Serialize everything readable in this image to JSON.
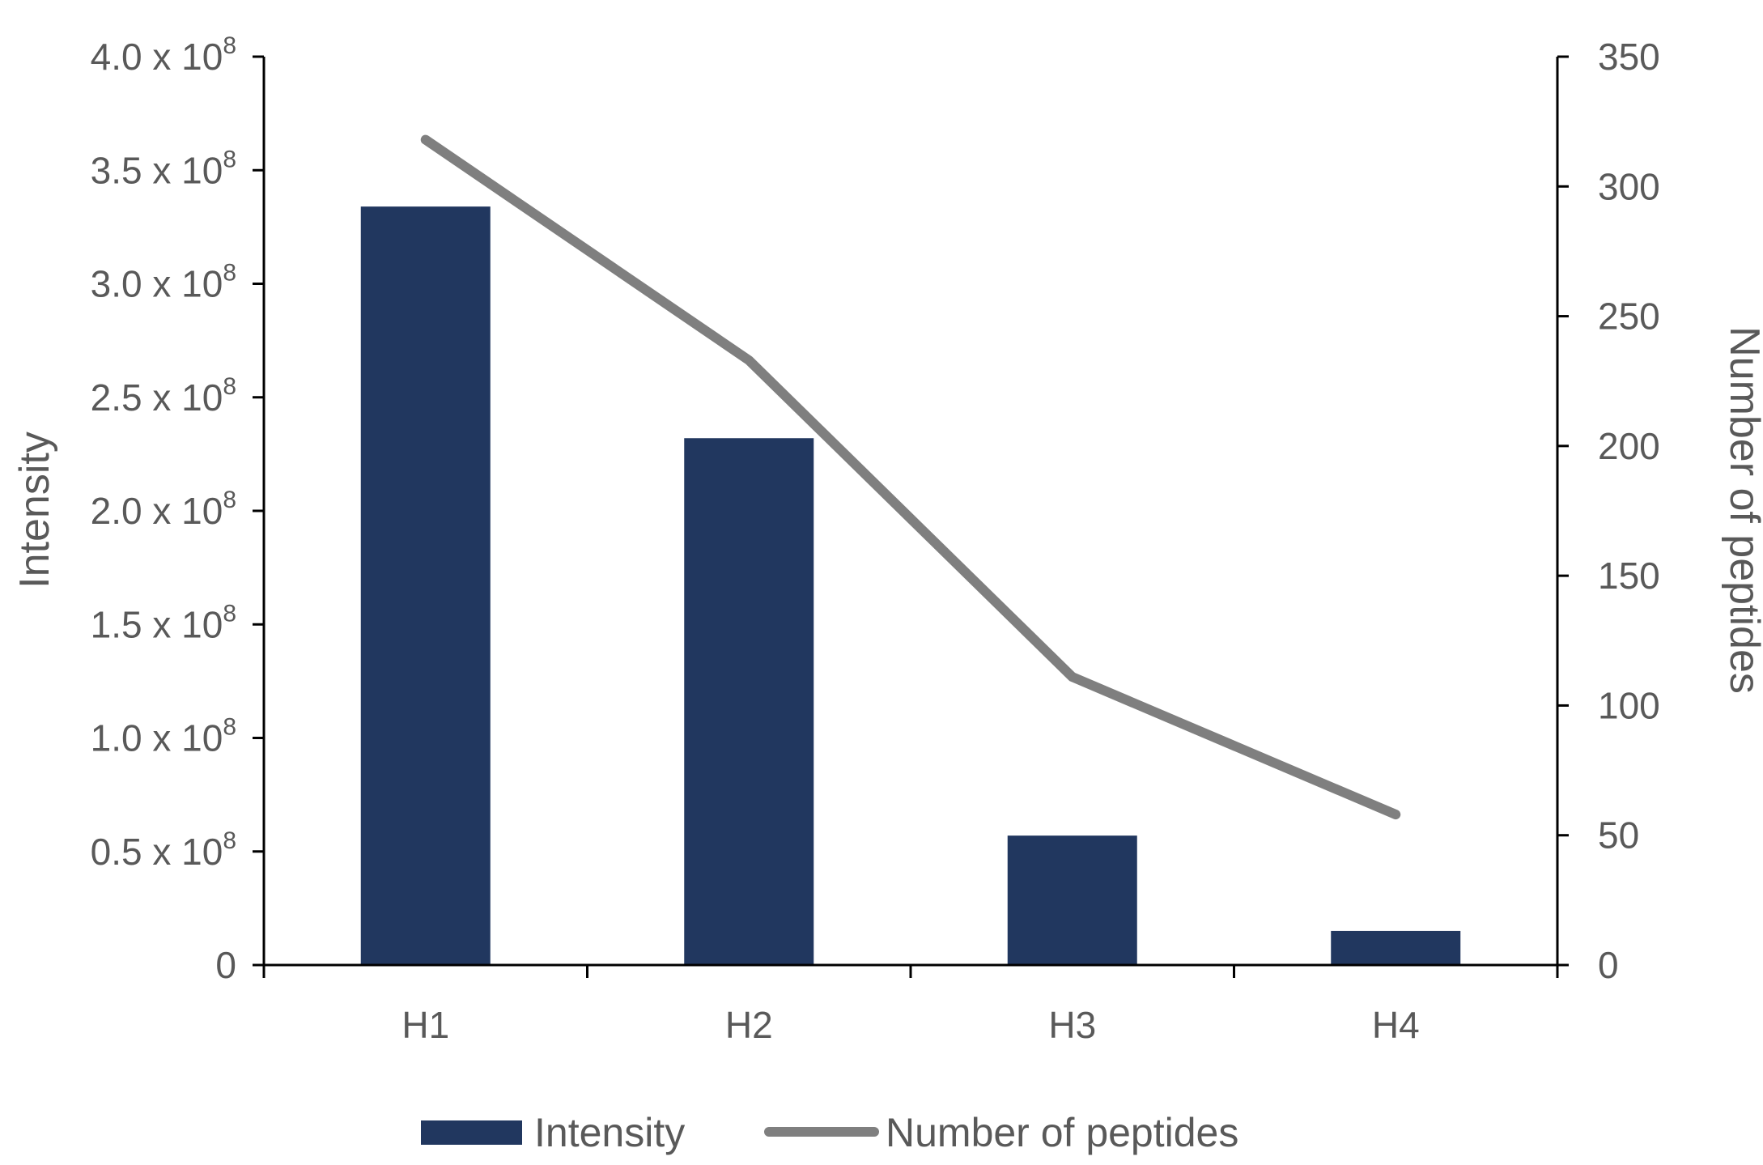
{
  "chart_data": {
    "type": "bar",
    "categories": [
      "H1",
      "H2",
      "H3",
      "H4"
    ],
    "series": [
      {
        "name": "Intensity",
        "type": "bar",
        "axis": "left",
        "values": [
          334000000,
          232000000,
          57000000,
          15000000
        ]
      },
      {
        "name": "Number of peptides",
        "type": "line",
        "axis": "right",
        "values": [
          318,
          233,
          111,
          58
        ]
      }
    ],
    "title": "",
    "xlabel": "",
    "ylabel": "Intensity",
    "y2label": "Number of peptides",
    "ylim": [
      0,
      400000000
    ],
    "y2lim": [
      0,
      350
    ],
    "yticks": [
      {
        "value": 0,
        "base": "0",
        "exp": ""
      },
      {
        "value": 50000000,
        "base": "0.5 x 10",
        "exp": "8"
      },
      {
        "value": 100000000,
        "base": "1.0 x 10",
        "exp": "8"
      },
      {
        "value": 150000000,
        "base": "1.5 x 10",
        "exp": "8"
      },
      {
        "value": 200000000,
        "base": "2.0 x 10",
        "exp": "8"
      },
      {
        "value": 250000000,
        "base": "2.5 x 10",
        "exp": "8"
      },
      {
        "value": 300000000,
        "base": "3.0 x 10",
        "exp": "8"
      },
      {
        "value": 350000000,
        "base": "3.5 x 10",
        "exp": "8"
      },
      {
        "value": 400000000,
        "base": "4.0 x 10",
        "exp": "8"
      }
    ],
    "y2ticks": [
      "0",
      "50",
      "100",
      "150",
      "200",
      "250",
      "300",
      "350"
    ],
    "grid": false,
    "legend": "bottom",
    "colors": {
      "bar": "#21375f",
      "line": "#7f7f7f",
      "axis": "#000000",
      "text": "#595959"
    }
  }
}
